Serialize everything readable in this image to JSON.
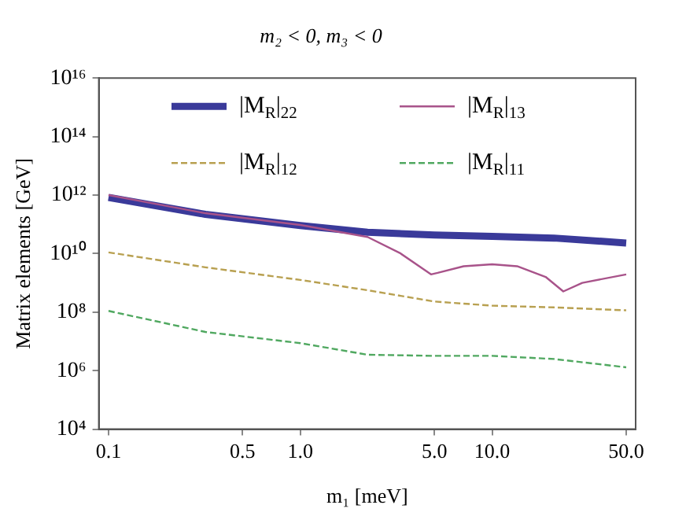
{
  "chart_data": {
    "type": "line",
    "title": "m₂ < 0, m₃ < 0",
    "xlabel": "m₁ [meV]",
    "ylabel": "Matrix elements [GeV]",
    "log": "xy",
    "grid": false,
    "legend": "top right",
    "marker": "none",
    "xlim": [
      0.089,
      56
    ],
    "xticks": [
      0.1,
      {
        "value": 0.5,
        "label": "0.5"
      },
      {
        "value": 1,
        "label": "1.0"
      },
      {
        "value": 5,
        "label": "5.0"
      },
      {
        "value": 10,
        "label": "10.0"
      },
      {
        "value": 50,
        "label": "50.0"
      }
    ],
    "ylim": [
      10000.0,
      1e+16
    ],
    "yticks": [
      {
        "value": 10000.0,
        "label": "10⁴"
      },
      {
        "value": 1000000.0,
        "label": "10⁶"
      },
      {
        "value": 100000000.0,
        "label": "10⁸"
      },
      {
        "value": 10000000000.0,
        "label": "10¹⁰"
      },
      {
        "value": 1000000000000.0,
        "label": "10¹²"
      },
      {
        "value": 100000000000000.0,
        "label": "10¹⁴"
      },
      {
        "value": 1e+16,
        "label": "10¹⁶"
      }
    ],
    "x": [
      0.1,
      0.32,
      1,
      2.24,
      5,
      10,
      21,
      50
    ],
    "series": [
      {
        "name": "|M$_{R}$|$_{22}$",
        "color": "#3a3a9a",
        "line_style": "solid",
        "values": [
          830000000000.0,
          220000000000.0,
          91000000000.0,
          54000000000.0,
          43000000000.0,
          39000000000.0,
          34000000000.0,
          23000000000.0
        ]
      },
      {
        "name": "|M$_{R}$|$_{13}$",
        "color": "#a8538a",
        "line_style": "solid",
        "x": [
          0.1,
          0.32,
          1,
          2.24,
          3.3,
          4.8,
          5.2,
          7.1,
          10,
          13.5,
          19,
          23.5,
          29.5,
          50
        ],
        "values": [
          1000000000000.0,
          240000000000.0,
          95000000000.0,
          37000000000.0,
          10500000000.0,
          1950000000.0,
          2200000000.0,
          3700000000.0,
          4300000000.0,
          3700000000.0,
          1600000000.0,
          510000000.0,
          1000000000.0,
          1950000000.0
        ]
      },
      {
        "name": "|M$_{R}$|$_{12}$",
        "color": "#b8a050",
        "line_style": "dashed",
        "values": [
          11000000000.0,
          3400000000.0,
          1260000000.0,
          560000000.0,
          230000000.0,
          166000000.0,
          145000000.0,
          115000000.0
        ]
      },
      {
        "name": "|M$_{R}$|$_{11}$",
        "color": "#50a860",
        "line_style": "dashed",
        "values": [
          110000000.0,
          21000000.0,
          8700000.0,
          3500000.0,
          3200000.0,
          3200000.0,
          2500000.0,
          1300000.0
        ]
      }
    ]
  }
}
